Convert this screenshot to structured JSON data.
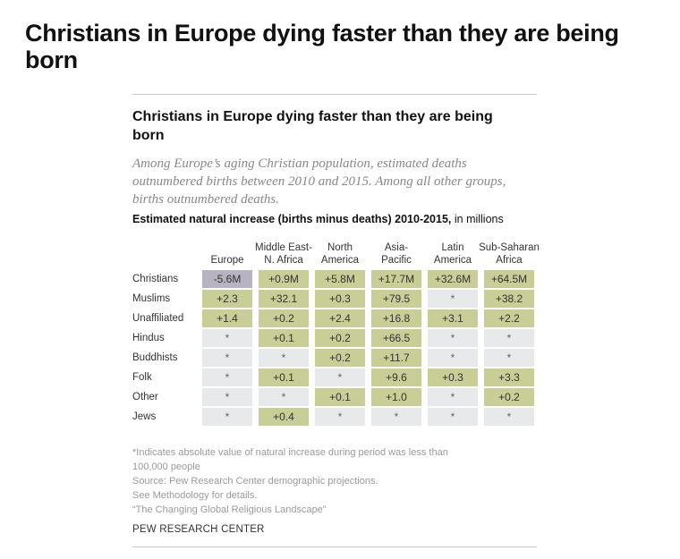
{
  "page_title": "Christians in Europe dying faster than they are being born",
  "chart_data": {
    "type": "table",
    "title": "Christians in Europe dying faster than they are being born",
    "subtitle": "Among Europe’s aging Christian population, estimated deaths outnumbered births between 2010 and 2015. Among all other groups, births outnumbered deaths.",
    "table_title_bold": "Estimated natural increase (births minus deaths) 2010-2015,",
    "table_title_unit": " in millions",
    "columns": [
      "Europe",
      "Middle East-\nN. Africa",
      "North\nAmerica",
      "Asia-\nPacific",
      "Latin\nAmerica",
      "Sub-Saharan\nAfrica"
    ],
    "column_lines": [
      [
        "",
        "Europe"
      ],
      [
        "Middle East-",
        "N. Africa"
      ],
      [
        "North",
        "America"
      ],
      [
        "Asia-",
        "Pacific"
      ],
      [
        "Latin",
        "America"
      ],
      [
        "Sub-Saharan",
        "Africa"
      ]
    ],
    "rows": [
      {
        "label": "Christians",
        "cells": [
          "-5.6M",
          "+0.9M",
          "+5.8M",
          "+17.7M",
          "+32.6M",
          "+64.5M"
        ]
      },
      {
        "label": "Muslims",
        "cells": [
          "+2.3",
          "+32.1",
          "+0.3",
          "+79.5",
          "*",
          "+38.2"
        ]
      },
      {
        "label": "Unaffiliated",
        "cells": [
          "+1.4",
          "+0.2",
          "+2.4",
          "+16.8",
          "+3.1",
          "+2.2"
        ]
      },
      {
        "label": "Hindus",
        "cells": [
          "*",
          "+0.1",
          "+0.2",
          "+66.5",
          "*",
          "*"
        ]
      },
      {
        "label": "Buddhists",
        "cells": [
          "*",
          "*",
          "+0.2",
          "+11.7",
          "*",
          "*"
        ]
      },
      {
        "label": "Folk",
        "cells": [
          "*",
          "+0.1",
          "*",
          "+9.6",
          "+0.3",
          "+3.3"
        ]
      },
      {
        "label": "Other",
        "cells": [
          "*",
          "*",
          "+0.1",
          "+1.0",
          "*",
          "+0.2"
        ]
      },
      {
        "label": "Jews",
        "cells": [
          "*",
          "+0.4",
          "*",
          "*",
          "*",
          "*"
        ]
      }
    ],
    "colors": {
      "positive": "#c9cd96",
      "negative": "#b7b3c3",
      "negligible": "#e8e9ea"
    }
  },
  "footnotes": [
    "*Indicates absolute value of natural increase during period was less than",
    "100,000 people",
    "Source: Pew Research Center demographic projections.",
    "See Methodology for details.",
    "“The Changing Global Religious Landscape”"
  ],
  "brand": "PEW RESEARCH CENTER"
}
